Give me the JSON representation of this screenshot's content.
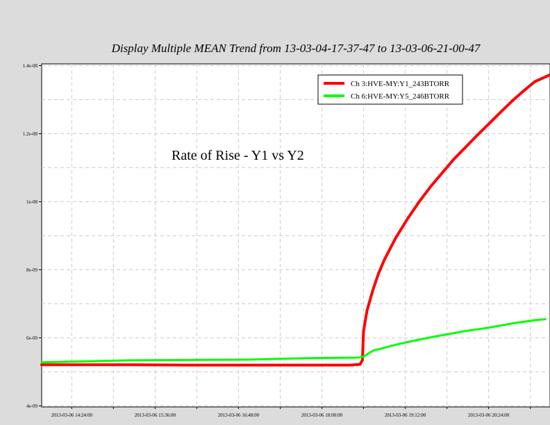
{
  "chart_data": {
    "type": "line",
    "title": "Display Multiple MEAN Trend from 13-03-04-17-37-47 to 13-03-06-21-00-47",
    "annotation": "Rate of Rise - Y1 vs Y2",
    "xlabel": "",
    "ylabel": "",
    "x_unit": "minutes after 2013-03-06 14:24:00",
    "xlim": [
      -26,
      413
    ],
    "ylim": [
      3.97e-09,
      1.405e-08
    ],
    "yticks": [
      {
        "value": 4e-09,
        "label": "4e-09"
      },
      {
        "value": 6e-09,
        "label": "6e-09"
      },
      {
        "value": 8e-09,
        "label": "8e-09"
      },
      {
        "value": 1e-08,
        "label": "1e-08"
      },
      {
        "value": 1.2e-08,
        "label": "1.2e-08"
      },
      {
        "value": 1.4e-08,
        "label": "1.4e-08"
      }
    ],
    "xticks": [
      {
        "value": 0,
        "label": "2013-03-06 14:24:00"
      },
      {
        "value": 72,
        "label": "2013-03-06 15:36:00"
      },
      {
        "value": 144,
        "label": "2013-03-06 16:48:00"
      },
      {
        "value": 216,
        "label": "2013-03-06 18:00:00"
      },
      {
        "value": 288,
        "label": "2013-03-06 19:12:00"
      },
      {
        "value": 360,
        "label": "2013-03-06 20:24:00"
      }
    ],
    "grid": true,
    "legend_position": "top-right",
    "series": [
      {
        "name": "Ch 3:HVE-MY:Y1_243BTORR",
        "color": "#ff0000",
        "points": [
          [
            -26,
            5.21e-09
          ],
          [
            0,
            5.21e-09
          ],
          [
            50,
            5.21e-09
          ],
          [
            100,
            5.2e-09
          ],
          [
            150,
            5.2e-09
          ],
          [
            200,
            5.2e-09
          ],
          [
            240,
            5.2e-09
          ],
          [
            249,
            5.22e-09
          ],
          [
            251,
            5.35e-09
          ],
          [
            252,
            6.2e-09
          ],
          [
            255,
            6.8e-09
          ],
          [
            260,
            7.4e-09
          ],
          [
            265,
            7.9e-09
          ],
          [
            270,
            8.3e-09
          ],
          [
            280,
            8.95e-09
          ],
          [
            290,
            9.5e-09
          ],
          [
            300,
            1e-08
          ],
          [
            310,
            1.045e-08
          ],
          [
            320,
            1.085e-08
          ],
          [
            330,
            1.125e-08
          ],
          [
            340,
            1.16e-08
          ],
          [
            350,
            1.195e-08
          ],
          [
            360,
            1.228e-08
          ],
          [
            370,
            1.262e-08
          ],
          [
            380,
            1.295e-08
          ],
          [
            390,
            1.325e-08
          ],
          [
            400,
            1.353e-08
          ],
          [
            413,
            1.373e-08
          ]
        ]
      },
      {
        "name": "Ch 6:HVE-MY:Y5_246BTORR",
        "color": "#00ff00",
        "points": [
          [
            -26,
            5.28e-09
          ],
          [
            0,
            5.3e-09
          ],
          [
            50,
            5.34e-09
          ],
          [
            100,
            5.35e-09
          ],
          [
            150,
            5.36e-09
          ],
          [
            200,
            5.4e-09
          ],
          [
            248,
            5.42e-09
          ],
          [
            252,
            5.45e-09
          ],
          [
            260,
            5.62e-09
          ],
          [
            280,
            5.8e-09
          ],
          [
            300,
            5.95e-09
          ],
          [
            320,
            6.08e-09
          ],
          [
            340,
            6.2e-09
          ],
          [
            360,
            6.3e-09
          ],
          [
            380,
            6.42e-09
          ],
          [
            400,
            6.52e-09
          ],
          [
            409,
            6.55e-09
          ]
        ]
      }
    ]
  }
}
